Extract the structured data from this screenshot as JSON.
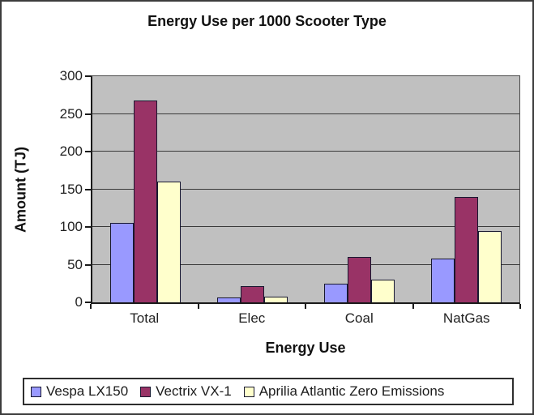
{
  "chart_data": {
    "type": "bar",
    "title": "Energy Use per 1000 Scooter Type",
    "xlabel": "Energy Use",
    "ylabel": "Amount (TJ)",
    "categories": [
      "Total",
      "Elec",
      "Coal",
      "NatGas"
    ],
    "series": [
      {
        "name": "Vespa LX150",
        "color": "#9999FF",
        "values": [
          105,
          7,
          25,
          58
        ]
      },
      {
        "name": "Vectrix VX-1",
        "color": "#993366",
        "values": [
          268,
          21,
          60,
          140
        ]
      },
      {
        "name": "Aprilia Atlantic Zero Emissions",
        "color": "#FFFFCC",
        "values": [
          160,
          8,
          30,
          95
        ]
      }
    ],
    "ylim": [
      0,
      300
    ],
    "ytick_step": 50,
    "yticks": [
      0,
      50,
      100,
      150,
      200,
      250,
      300
    ],
    "grid": true,
    "legend_position": "bottom",
    "plot_bg_color": "#C0C0C0",
    "axis_color": "#1a1a1a",
    "bar_border_color": "#181830"
  }
}
